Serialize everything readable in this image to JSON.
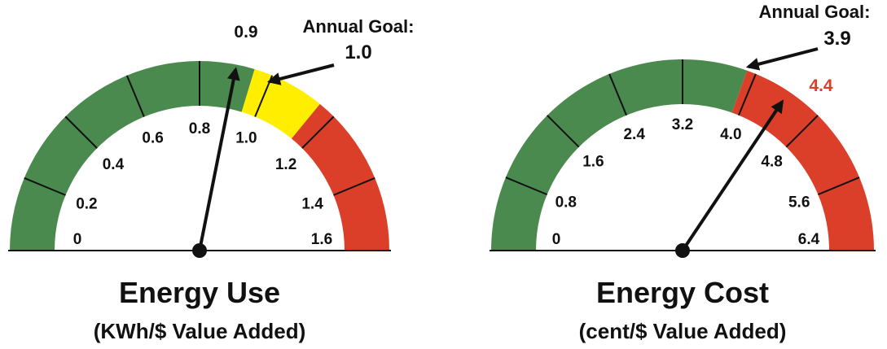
{
  "chart_data": [
    {
      "type": "gauge",
      "title": "Energy Use",
      "subtitle": "(KWh/$ Value Added)",
      "range": [
        0,
        1.6
      ],
      "ticks": [
        0,
        0.2,
        0.4,
        0.6,
        0.8,
        {
          "value": 1,
          "label": "1.0"
        },
        1.2,
        1.4,
        1.6
      ],
      "bands": [
        {
          "from": 0,
          "to": 0.95,
          "color": "#4b8a4f"
        },
        {
          "from": 0.95,
          "to": 1.15,
          "color": "#ffee00"
        },
        {
          "from": 1.15,
          "to": 1.6,
          "color": "#db3f2a"
        }
      ],
      "values": [
        0.9
      ],
      "value_color": "#111111",
      "goal_label": "Annual Goal:",
      "goal": 1,
      "goal_value_label": "1.0"
    },
    {
      "type": "gauge",
      "title": "Energy Cost",
      "subtitle": "(cent/$ Value Added)",
      "range": [
        0,
        6.4
      ],
      "ticks": [
        0,
        0.8,
        1.6,
        2.4,
        3.2,
        {
          "value": 4,
          "label": "4.0"
        },
        4.8,
        5.6,
        6.4
      ],
      "bands": [
        {
          "from": 0,
          "to": 3.9,
          "color": "#4b8a4f"
        },
        {
          "from": 3.9,
          "to": 6.4,
          "color": "#db3f2a"
        }
      ],
      "values": [
        4.4
      ],
      "value_color": "#db3f2a",
      "goal_label": "Annual Goal:",
      "goal": 3.9
    }
  ]
}
